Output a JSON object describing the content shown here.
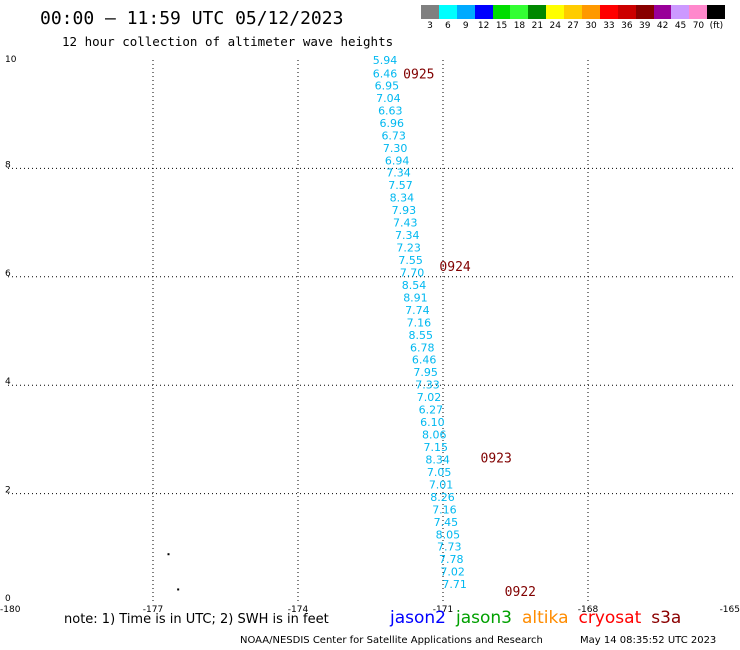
{
  "header": {
    "title": "00:00 – 11:59 UTC 05/12/2023",
    "subtitle": "12 hour collection of altimeter wave heights"
  },
  "legend": {
    "colors": [
      "#808080",
      "#00ffff",
      "#00aaff",
      "#0000ff",
      "#00dd00",
      "#33ff33",
      "#008800",
      "#ffff00",
      "#ffcc00",
      "#ff9900",
      "#ff0000",
      "#cc0000",
      "#880000",
      "#990099",
      "#cc99ff",
      "#ff88cc",
      "#000000"
    ],
    "labels": [
      "3",
      "6",
      "9",
      "12",
      "15",
      "18",
      "21",
      "24",
      "27",
      "30",
      "33",
      "36",
      "39",
      "42",
      "45",
      "70",
      "(ft)"
    ]
  },
  "chart_data": {
    "type": "scatter",
    "xlim": [
      -180,
      -165
    ],
    "ylim": [
      0,
      10
    ],
    "xticks": [
      "-180",
      "-177",
      "-174",
      "-171",
      "-168",
      "-165"
    ],
    "yticks": [
      "0",
      "2",
      "4",
      "6",
      "8",
      "10"
    ],
    "grid": true,
    "series": [
      {
        "name": "jason2",
        "values": [
          {
            "x": -172.2,
            "y": 10.0,
            "label": "5.94"
          },
          {
            "x": -172.2,
            "y": 9.75,
            "label": "6.46"
          },
          {
            "x": -172.16,
            "y": 9.53,
            "label": "6.95"
          },
          {
            "x": -172.13,
            "y": 9.3,
            "label": "7.04"
          },
          {
            "x": -172.09,
            "y": 9.07,
            "label": "6.63"
          },
          {
            "x": -172.06,
            "y": 8.84,
            "label": "6.96"
          },
          {
            "x": -172.02,
            "y": 8.61,
            "label": "6.73"
          },
          {
            "x": -171.99,
            "y": 8.38,
            "label": "7.30"
          },
          {
            "x": -171.95,
            "y": 8.15,
            "label": "6.94"
          },
          {
            "x": -171.92,
            "y": 7.92,
            "label": "7.34"
          },
          {
            "x": -171.88,
            "y": 7.69,
            "label": "7.57"
          },
          {
            "x": -171.85,
            "y": 7.46,
            "label": "8.34"
          },
          {
            "x": -171.81,
            "y": 7.23,
            "label": "7.93"
          },
          {
            "x": -171.78,
            "y": 7.0,
            "label": "7.43"
          },
          {
            "x": -171.74,
            "y": 6.77,
            "label": "7.34"
          },
          {
            "x": -171.71,
            "y": 6.54,
            "label": "7.23"
          },
          {
            "x": -171.67,
            "y": 6.31,
            "label": "7.55"
          },
          {
            "x": -171.64,
            "y": 6.08,
            "label": "7.70"
          },
          {
            "x": -171.6,
            "y": 5.85,
            "label": "8.54"
          },
          {
            "x": -171.57,
            "y": 5.62,
            "label": "8.91"
          },
          {
            "x": -171.53,
            "y": 5.39,
            "label": "7.74"
          },
          {
            "x": -171.5,
            "y": 5.16,
            "label": "7.16"
          },
          {
            "x": -171.46,
            "y": 4.93,
            "label": "8.55"
          },
          {
            "x": -171.43,
            "y": 4.7,
            "label": "6.78"
          },
          {
            "x": -171.39,
            "y": 4.47,
            "label": "6.46"
          },
          {
            "x": -171.36,
            "y": 4.24,
            "label": "7.95"
          },
          {
            "x": -171.32,
            "y": 4.01,
            "label": "7.33"
          },
          {
            "x": -171.29,
            "y": 3.78,
            "label": "7.02"
          },
          {
            "x": -171.25,
            "y": 3.55,
            "label": "6.27"
          },
          {
            "x": -171.22,
            "y": 3.32,
            "label": "6.10"
          },
          {
            "x": -171.18,
            "y": 3.09,
            "label": "8.06"
          },
          {
            "x": -171.15,
            "y": 2.86,
            "label": "7.15"
          },
          {
            "x": -171.11,
            "y": 2.63,
            "label": "8.34"
          },
          {
            "x": -171.08,
            "y": 2.4,
            "label": "7.05"
          },
          {
            "x": -171.04,
            "y": 2.17,
            "label": "7.01"
          },
          {
            "x": -171.01,
            "y": 1.94,
            "label": "8.26"
          },
          {
            "x": -170.97,
            "y": 1.71,
            "label": "7.16"
          },
          {
            "x": -170.94,
            "y": 1.48,
            "label": "7.45"
          },
          {
            "x": -170.9,
            "y": 1.25,
            "label": "8.05"
          },
          {
            "x": -170.87,
            "y": 1.02,
            "label": "7.73"
          },
          {
            "x": -170.83,
            "y": 0.79,
            "label": "7.78"
          },
          {
            "x": -170.8,
            "y": 0.56,
            "label": "7.02"
          },
          {
            "x": -170.76,
            "y": 0.33,
            "label": "7.71"
          }
        ]
      }
    ],
    "time_labels": [
      {
        "x": -171.5,
        "y": 9.75,
        "label": "0925"
      },
      {
        "x": -170.75,
        "y": 6.2,
        "label": "0924"
      },
      {
        "x": -169.9,
        "y": 2.67,
        "label": "0923"
      },
      {
        "x": -169.4,
        "y": 0.2,
        "label": "0922"
      }
    ],
    "time_label_color": "#800000",
    "point_color": "#00b8f0",
    "extra_dots": [
      {
        "x": -176.7,
        "y": 0.9
      },
      {
        "x": -176.5,
        "y": 0.25
      }
    ]
  },
  "note": "note: 1) Time is in UTC; 2) SWH is in feet",
  "satellites": [
    {
      "name": "jason2",
      "color": "#0000ff"
    },
    {
      "name": "jason3",
      "color": "#00a000"
    },
    {
      "name": "altika",
      "color": "#ff8c00"
    },
    {
      "name": "cryosat",
      "color": "#ff0000"
    },
    {
      "name": "s3a",
      "color": "#8b0000"
    }
  ],
  "footer": {
    "left": "NOAA/NESDIS Center for Satellite Applications and Research",
    "right": "May 14 08:35:52 UTC 2023"
  }
}
